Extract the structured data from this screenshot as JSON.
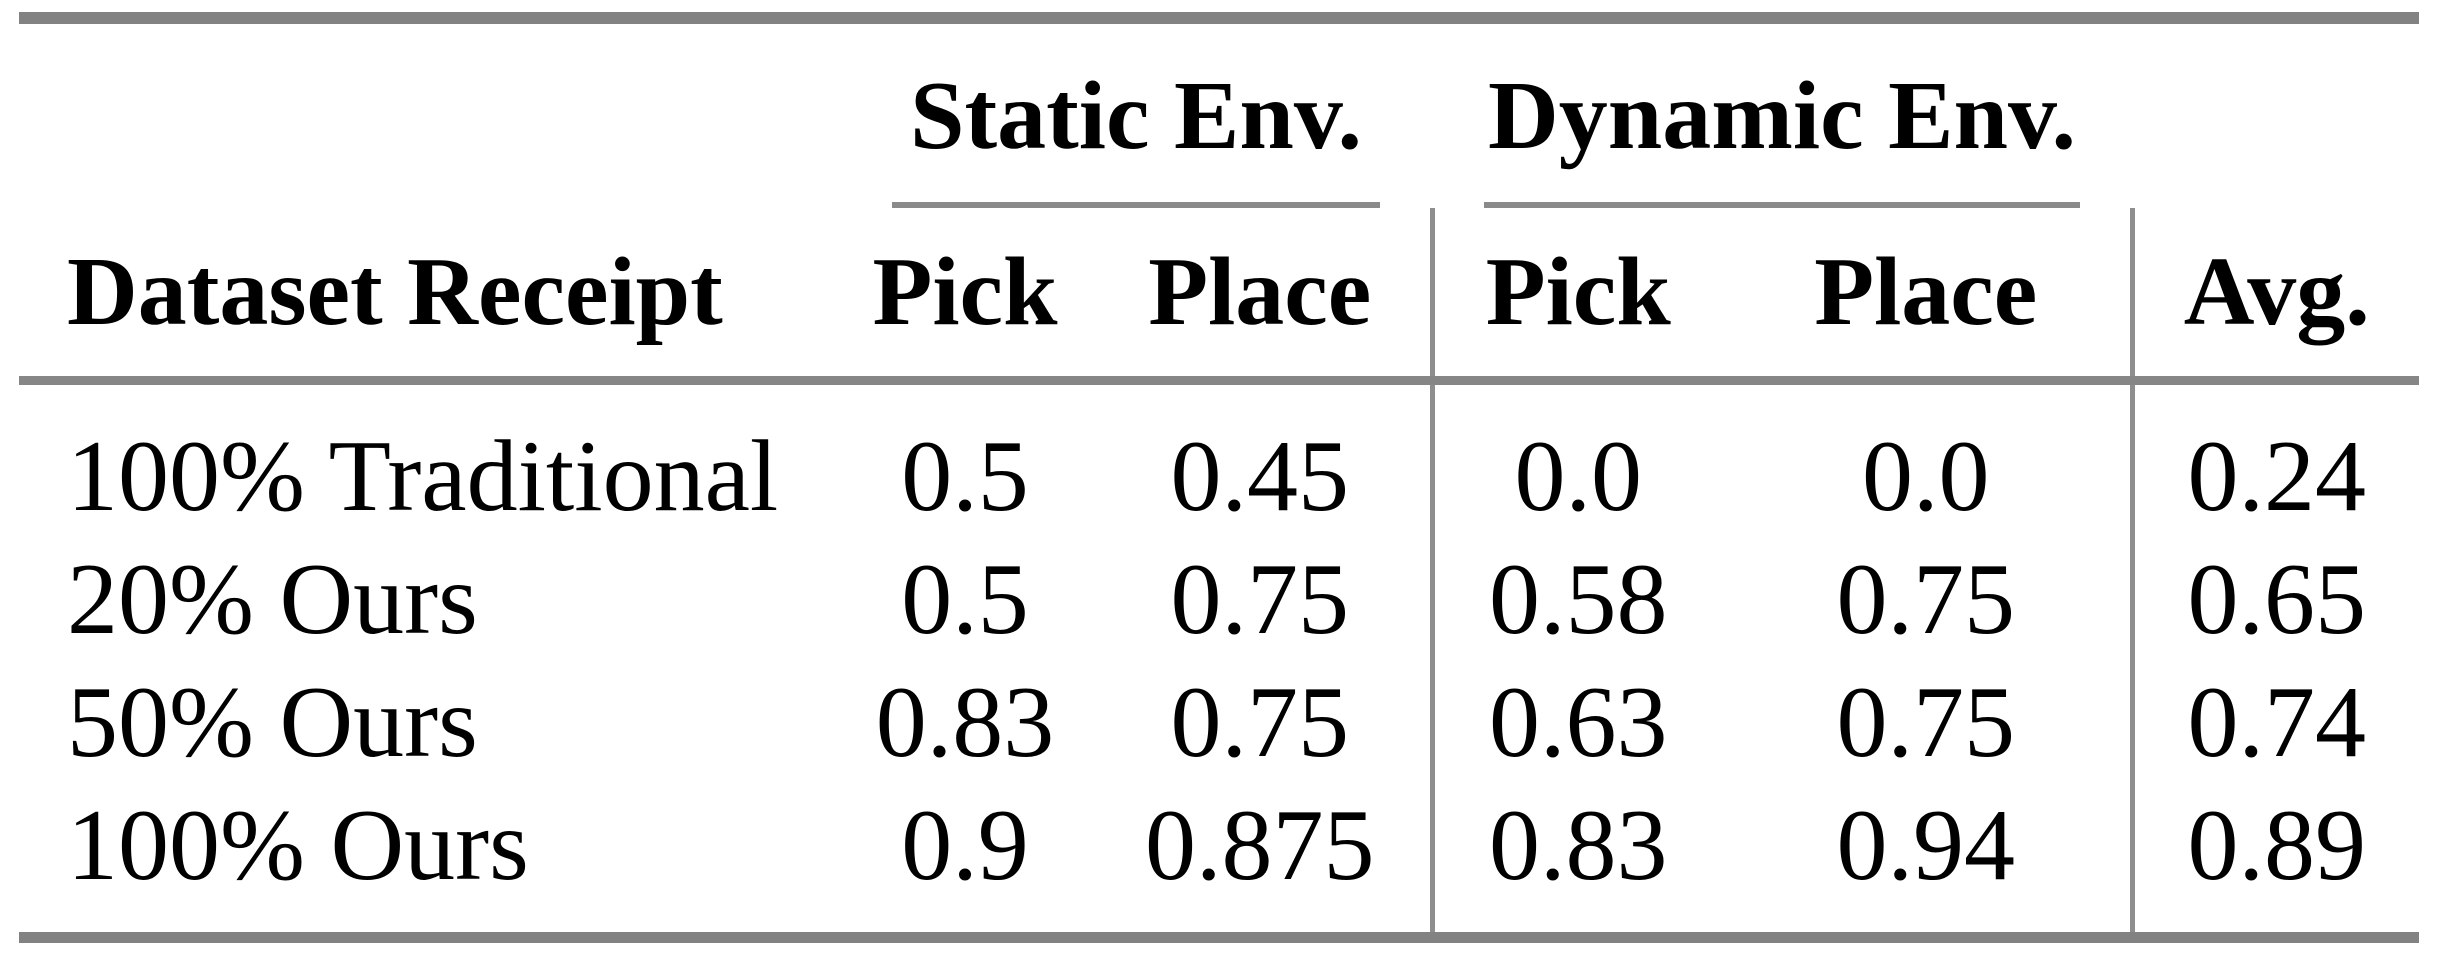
{
  "table": {
    "group_headers": [
      {
        "label": "Static Env."
      },
      {
        "label": "Dynamic Env."
      }
    ],
    "column_headers": {
      "row_label": "Dataset Receipt",
      "static_pick": "Pick",
      "static_place": "Place",
      "dynamic_pick": "Pick",
      "dynamic_place": "Place",
      "avg": "Avg."
    },
    "rows": [
      {
        "label": "100% Traditional",
        "values": [
          "0.5",
          "0.45",
          "0.0",
          "0.0",
          "0.24"
        ]
      },
      {
        "label": "20% Ours",
        "values": [
          "0.5",
          "0.75",
          "0.58",
          "0.75",
          "0.65"
        ]
      },
      {
        "label": "50% Ours",
        "values": [
          "0.83",
          "0.75",
          "0.63",
          "0.75",
          "0.74"
        ]
      },
      {
        "label": "100% Ours",
        "values": [
          "0.9",
          "0.875",
          "0.83",
          "0.94",
          "0.89"
        ]
      }
    ]
  },
  "colors": {
    "text": "#000000",
    "rule_thick": "#828282",
    "rule_mid": "#868686",
    "rule_cmid": "#8a8a8a",
    "vline": "#8e8e8e",
    "background": "#ffffff"
  }
}
